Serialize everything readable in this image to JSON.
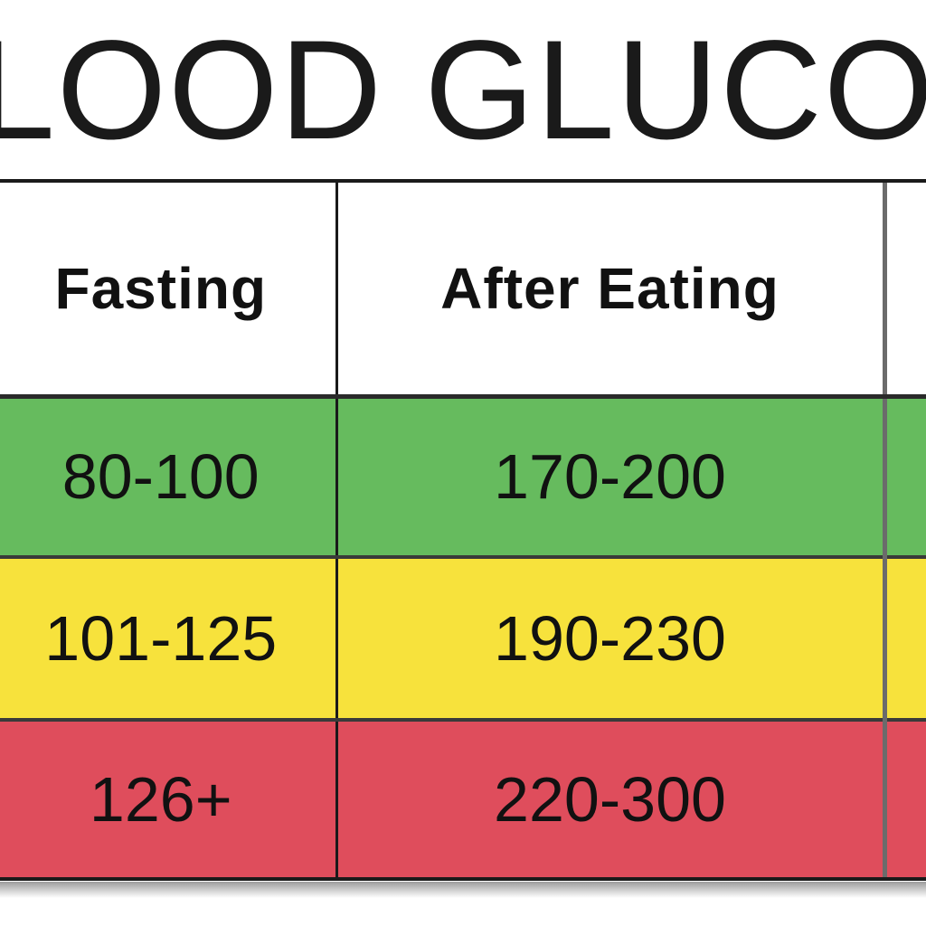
{
  "title": "LOOD GLUCOSE",
  "chart_data": {
    "type": "table",
    "columns": [
      "Fasting",
      "After Eating",
      ""
    ],
    "rows": [
      {
        "fasting": "80-100",
        "after_eating": "170-200",
        "color": "#66bb5e"
      },
      {
        "fasting": "101-125",
        "after_eating": "190-230",
        "color": "#f7e23c"
      },
      {
        "fasting": "126+",
        "after_eating": "220-300",
        "color": "#df4d5c"
      }
    ]
  }
}
